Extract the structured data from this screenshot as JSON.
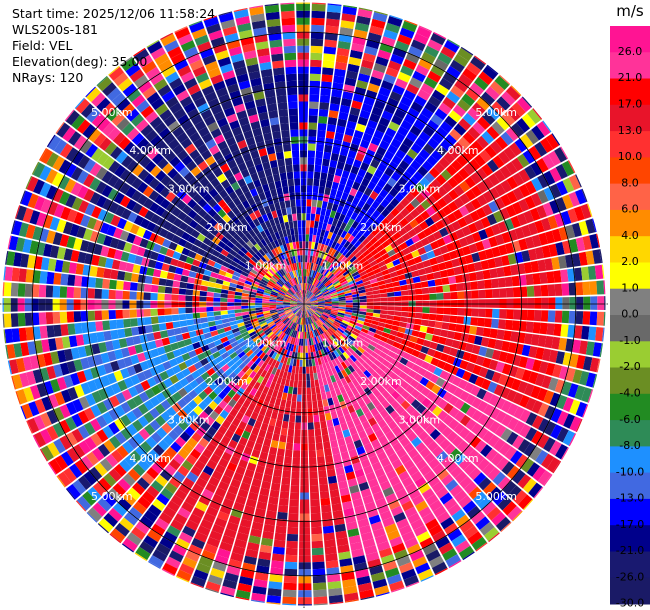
{
  "header": {
    "start_time": "Start time: 2025/12/06 11:58:24",
    "station": "WLS200s-181",
    "field": "Field: VEL",
    "elevation": "Elevation(deg): 35.00",
    "nrays": "NRays: 120"
  },
  "chart_data": {
    "type": "polar-ppi",
    "field": "VEL",
    "unit": "m/s",
    "nrays": 120,
    "range_rings_km": [
      1.0,
      2.0,
      3.0,
      4.0,
      5.0
    ],
    "ring_labels": [
      "1.00km",
      "2.00km",
      "3.00km",
      "4.00km",
      "5.00km"
    ],
    "colorbar": {
      "unit": "m/s",
      "tick_labels": [
        "26.0",
        "21.0",
        "17.0",
        "13.0",
        "10.0",
        "8.0",
        "6.0",
        "4.0",
        "2.0",
        "1.0",
        "0.0",
        "-1.0",
        "-2.0",
        "-4.0",
        "-6.0",
        "-8.0",
        "-10.0",
        "-13.0",
        "-17.0",
        "-21.0",
        "-26.0",
        "-30.0"
      ],
      "levels": [
        30,
        26,
        21,
        17,
        13,
        10,
        8,
        6,
        4,
        2,
        1,
        0,
        -1,
        -2,
        -4,
        -6,
        -8,
        -10,
        -13,
        -17,
        -21,
        -26,
        -30
      ],
      "colors": [
        "#ff1493",
        "#ff3399",
        "#ff0000",
        "#e8142a",
        "#ff3030",
        "#ff4500",
        "#ff6347",
        "#ff8c00",
        "#ffd700",
        "#ffff00",
        "#808080",
        "#696969",
        "#9acd32",
        "#6b8e23",
        "#228b22",
        "#2e8b57",
        "#1e90ff",
        "#4169e1",
        "#0000ff",
        "#00008b",
        "#191970",
        "#1a1a66"
      ]
    },
    "dominant_sectors": [
      {
        "azimuth_from": 45,
        "azimuth_to": 115,
        "velocity": 17
      },
      {
        "azimuth_from": 115,
        "azimuth_to": 170,
        "velocity": 24
      },
      {
        "azimuth_from": 170,
        "azimuth_to": 215,
        "velocity": 15
      },
      {
        "azimuth_from": 225,
        "azimuth_to": 265,
        "velocity": -9
      },
      {
        "azimuth_from": 295,
        "azimuth_to": 355,
        "velocity": -22
      },
      {
        "azimuth_from": 355,
        "azimuth_to": 45,
        "velocity": -16
      }
    ]
  }
}
